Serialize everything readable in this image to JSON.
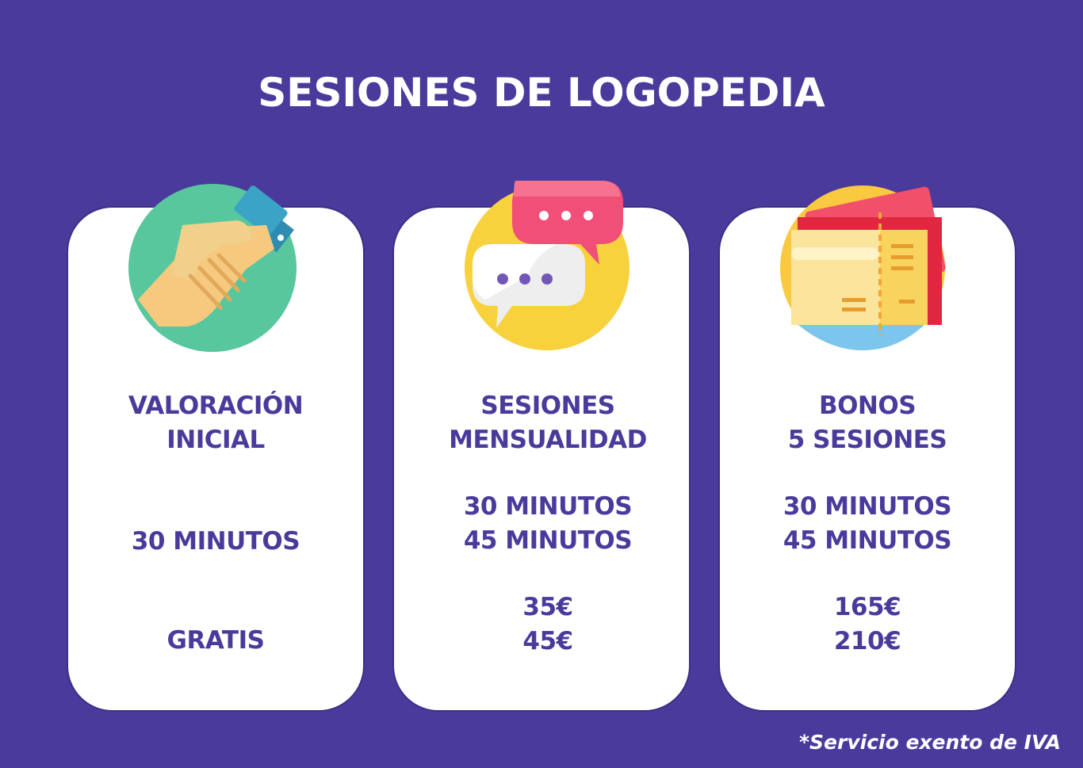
{
  "header": {
    "title": "SESIONES DE LOGOPEDIA"
  },
  "cards": [
    {
      "icon": "handshake-icon",
      "title_lines": [
        "VALORACIÓN",
        "INICIAL"
      ],
      "durations": [
        "30 MINUTOS"
      ],
      "prices": [
        "GRATIS"
      ]
    },
    {
      "icon": "chat-bubbles-icon",
      "title_lines": [
        "SESIONES",
        "MENSUALIDAD"
      ],
      "durations": [
        "30 MINUTOS",
        "45 MINUTOS"
      ],
      "prices": [
        "35€",
        "45€"
      ]
    },
    {
      "icon": "tickets-icon",
      "title_lines": [
        "BONOS",
        "5 SESIONES"
      ],
      "durations": [
        "30 MINUTOS",
        "45 MINUTOS"
      ],
      "prices": [
        "165€",
        "210€"
      ]
    }
  ],
  "footnote": "*Servicio exento de IVA",
  "colors": {
    "background": "#4a3a9c",
    "card": "#ffffff",
    "text": "#4a3a9c"
  }
}
